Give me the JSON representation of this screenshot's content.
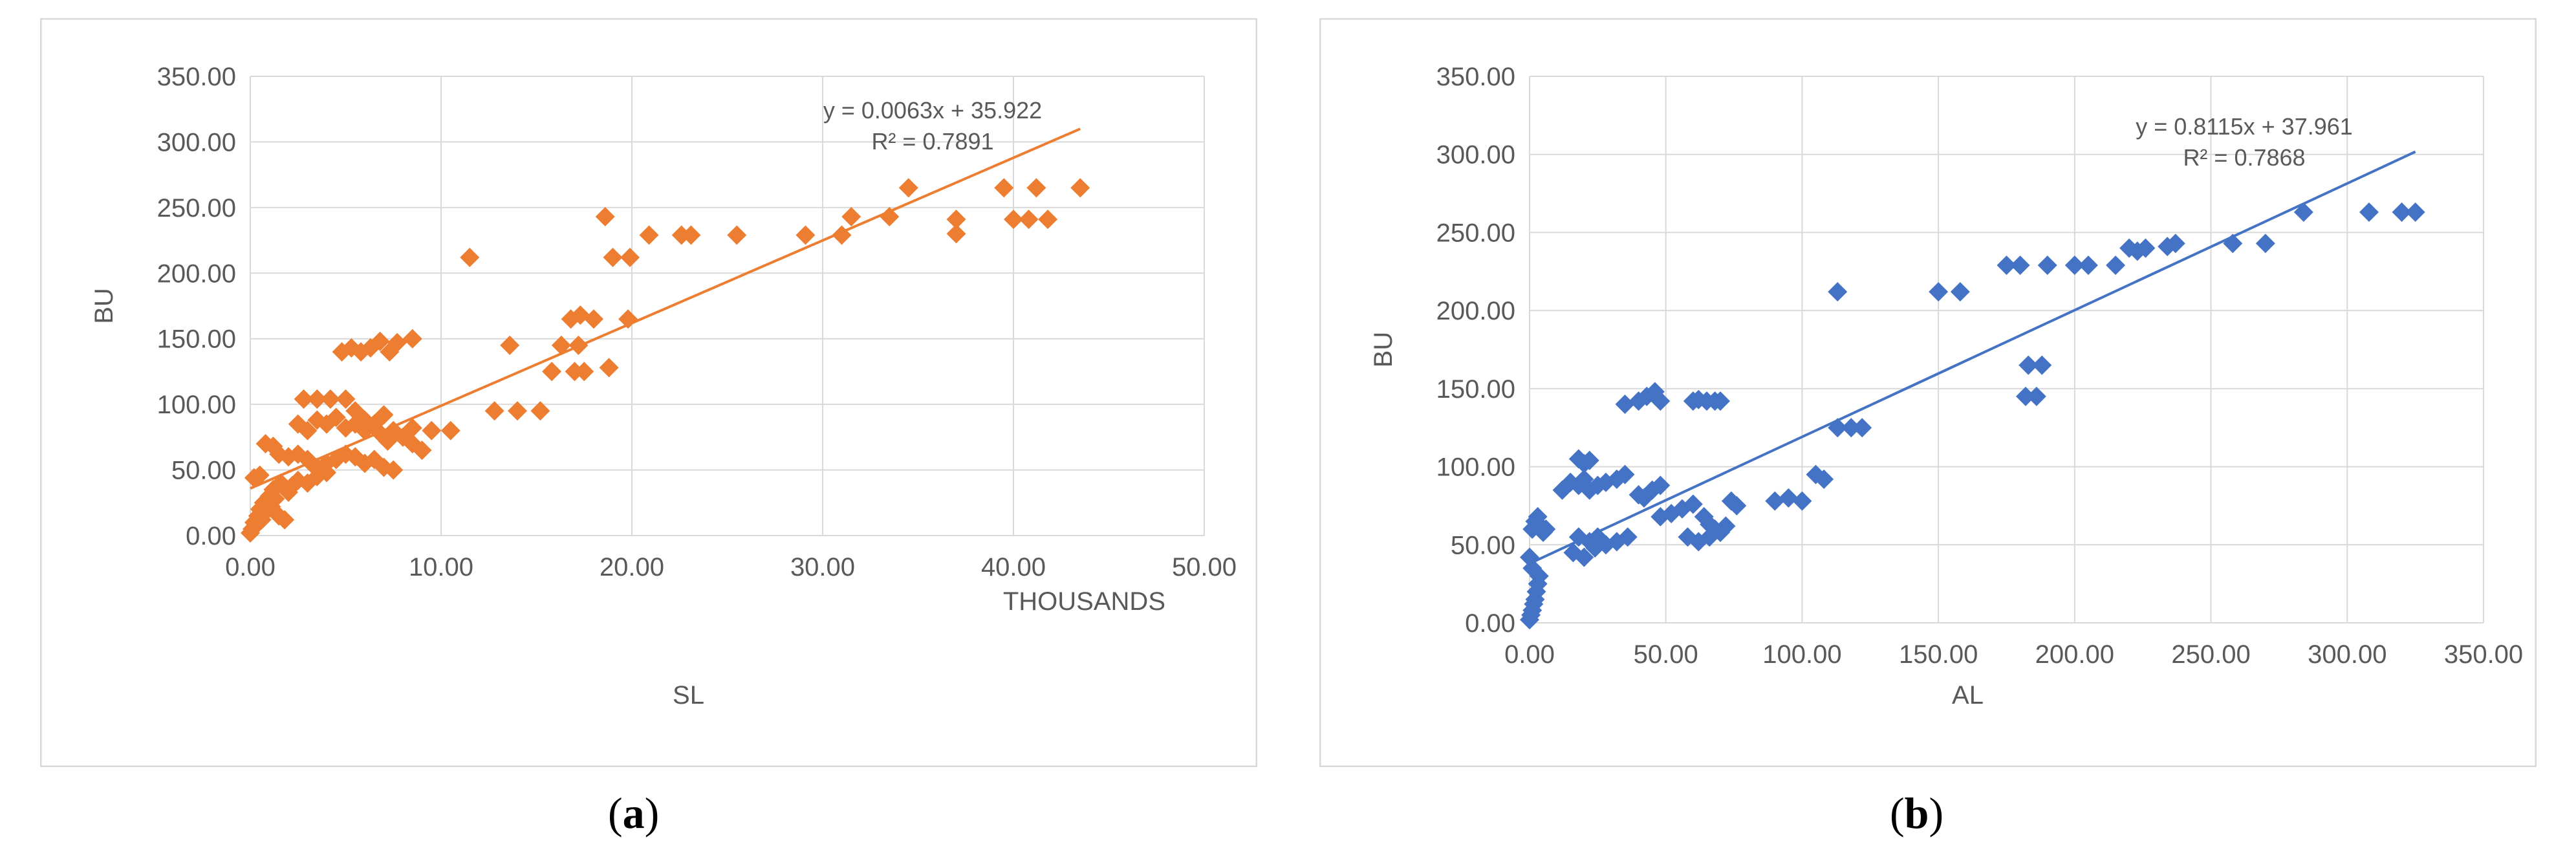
{
  "chart_data": [
    {
      "type": "scatter",
      "xlabel": "SL",
      "ylabel": "BU",
      "x_units_label": "THOUSANDS",
      "xlim": [
        0,
        50
      ],
      "ylim": [
        0,
        350
      ],
      "x_ticks": [
        "0.00",
        "10.00",
        "20.00",
        "30.00",
        "40.00",
        "50.00"
      ],
      "y_ticks": [
        "0.00",
        "50.00",
        "100.00",
        "150.00",
        "200.00",
        "250.00",
        "300.00",
        "350.00"
      ],
      "grid": true,
      "marker_color": "#ED7D31",
      "trendline": {
        "slope": 0.0063,
        "intercept": 35.922,
        "x_per_unit": 1000,
        "x_range": [
          0,
          43.5
        ]
      },
      "annotations": [
        "y = 0.0063x + 35.922",
        "R² = 0.7891"
      ],
      "points": [
        [
          0.0,
          2
        ],
        [
          0.1,
          5
        ],
        [
          0.2,
          10
        ],
        [
          0.3,
          8
        ],
        [
          0.4,
          15
        ],
        [
          0.5,
          20
        ],
        [
          0.6,
          12
        ],
        [
          0.7,
          25
        ],
        [
          0.8,
          18
        ],
        [
          1.0,
          30
        ],
        [
          1.1,
          22
        ],
        [
          1.2,
          35
        ],
        [
          1.3,
          28
        ],
        [
          1.5,
          15
        ],
        [
          1.6,
          40
        ],
        [
          1.8,
          12
        ],
        [
          2.0,
          33
        ],
        [
          2.2,
          38
        ],
        [
          2.5,
          42
        ],
        [
          3.0,
          40
        ],
        [
          3.5,
          45
        ],
        [
          4.0,
          48
        ],
        [
          0.2,
          44
        ],
        [
          0.5,
          46
        ],
        [
          0.8,
          70
        ],
        [
          1.2,
          68
        ],
        [
          1.5,
          62
        ],
        [
          2.0,
          60
        ],
        [
          2.5,
          62
        ],
        [
          3.0,
          58
        ],
        [
          3.2,
          55
        ],
        [
          3.5,
          52
        ],
        [
          4.0,
          55
        ],
        [
          4.5,
          58
        ],
        [
          5.0,
          62
        ],
        [
          5.5,
          60
        ],
        [
          6.0,
          55
        ],
        [
          6.5,
          58
        ],
        [
          7.0,
          52
        ],
        [
          7.5,
          50
        ],
        [
          2.5,
          85
        ],
        [
          3.0,
          80
        ],
        [
          3.5,
          88
        ],
        [
          4.0,
          85
        ],
        [
          4.5,
          90
        ],
        [
          5.0,
          82
        ],
        [
          5.5,
          95
        ],
        [
          6.0,
          88
        ],
        [
          6.5,
          85
        ],
        [
          7.0,
          92
        ],
        [
          7.5,
          80
        ],
        [
          8.0,
          75
        ],
        [
          8.5,
          70
        ],
        [
          9.0,
          65
        ],
        [
          8.5,
          82
        ],
        [
          9.5,
          80
        ],
        [
          10.5,
          80
        ],
        [
          2.8,
          104
        ],
        [
          3.5,
          104
        ],
        [
          4.2,
          104
        ],
        [
          5.0,
          104
        ],
        [
          5.5,
          85
        ],
        [
          6.0,
          80
        ],
        [
          6.8,
          78
        ],
        [
          7.2,
          72
        ],
        [
          4.8,
          140
        ],
        [
          5.3,
          143
        ],
        [
          5.8,
          140
        ],
        [
          6.3,
          143
        ],
        [
          6.8,
          148
        ],
        [
          7.3,
          140
        ],
        [
          7.7,
          147
        ],
        [
          8.5,
          150
        ],
        [
          11.5,
          212
        ],
        [
          12.8,
          95
        ],
        [
          13.6,
          145
        ],
        [
          14.0,
          95
        ],
        [
          15.2,
          95
        ],
        [
          15.8,
          125
        ],
        [
          16.3,
          145
        ],
        [
          16.8,
          165
        ],
        [
          17.0,
          125
        ],
        [
          17.2,
          145
        ],
        [
          17.3,
          168
        ],
        [
          17.5,
          125
        ],
        [
          18.0,
          165
        ],
        [
          18.6,
          243
        ],
        [
          18.8,
          128
        ],
        [
          19.0,
          212
        ],
        [
          19.8,
          165
        ],
        [
          19.9,
          212
        ],
        [
          20.9,
          229
        ],
        [
          22.6,
          229
        ],
        [
          23.1,
          229
        ],
        [
          25.5,
          229
        ],
        [
          29.1,
          229
        ],
        [
          31.0,
          229
        ],
        [
          31.5,
          243
        ],
        [
          33.5,
          243
        ],
        [
          34.5,
          265
        ],
        [
          37.0,
          230
        ],
        [
          37.0,
          241
        ],
        [
          39.5,
          265
        ],
        [
          40.0,
          241
        ],
        [
          40.8,
          241
        ],
        [
          41.2,
          265
        ],
        [
          41.8,
          241
        ],
        [
          43.5,
          265
        ]
      ]
    },
    {
      "type": "scatter",
      "xlabel": "AL",
      "ylabel": "BU",
      "xlim": [
        0,
        350
      ],
      "ylim": [
        0,
        350
      ],
      "x_ticks": [
        "0.00",
        "50.00",
        "100.00",
        "150.00",
        "200.00",
        "250.00",
        "300.00",
        "350.00"
      ],
      "y_ticks": [
        "0.00",
        "50.00",
        "100.00",
        "150.00",
        "200.00",
        "250.00",
        "300.00",
        "350.00"
      ],
      "grid": true,
      "marker_color": "#4472C4",
      "trendline": {
        "slope": 0.8115,
        "intercept": 37.961,
        "x_per_unit": 1,
        "x_range": [
          0,
          325
        ]
      },
      "annotations": [
        "y = 0.8115x + 37.961",
        "R² = 0.7868"
      ],
      "points": [
        [
          0,
          2
        ],
        [
          0.5,
          5
        ],
        [
          1,
          8
        ],
        [
          1.5,
          12
        ],
        [
          2,
          15
        ],
        [
          2.5,
          20
        ],
        [
          3,
          25
        ],
        [
          3.5,
          30
        ],
        [
          1,
          35
        ],
        [
          0,
          42
        ],
        [
          1,
          60
        ],
        [
          2,
          65
        ],
        [
          3,
          68
        ],
        [
          4,
          62
        ],
        [
          5,
          58
        ],
        [
          6,
          60
        ],
        [
          12,
          85
        ],
        [
          15,
          90
        ],
        [
          18,
          88
        ],
        [
          20,
          92
        ],
        [
          22,
          85
        ],
        [
          25,
          88
        ],
        [
          28,
          90
        ],
        [
          32,
          92
        ],
        [
          35,
          95
        ],
        [
          18,
          105
        ],
        [
          20,
          102
        ],
        [
          22,
          104
        ],
        [
          16,
          45
        ],
        [
          20,
          42
        ],
        [
          24,
          48
        ],
        [
          28,
          50
        ],
        [
          32,
          52
        ],
        [
          36,
          55
        ],
        [
          18,
          55
        ],
        [
          22,
          52
        ],
        [
          25,
          55
        ],
        [
          40,
          82
        ],
        [
          45,
          85
        ],
        [
          48,
          88
        ],
        [
          42,
          80
        ],
        [
          48,
          68
        ],
        [
          52,
          70
        ],
        [
          56,
          73
        ],
        [
          60,
          76
        ],
        [
          64,
          68
        ],
        [
          66,
          63
        ],
        [
          68,
          60
        ],
        [
          70,
          58
        ],
        [
          72,
          62
        ],
        [
          58,
          55
        ],
        [
          62,
          52
        ],
        [
          66,
          55
        ],
        [
          70,
          58
        ],
        [
          74,
          78
        ],
        [
          76,
          75
        ],
        [
          35,
          140
        ],
        [
          40,
          142
        ],
        [
          43,
          145
        ],
        [
          46,
          148
        ],
        [
          48,
          142
        ],
        [
          60,
          142
        ],
        [
          62,
          143
        ],
        [
          65,
          142
        ],
        [
          68,
          142
        ],
        [
          70,
          142
        ],
        [
          90,
          78
        ],
        [
          95,
          80
        ],
        [
          100,
          78
        ],
        [
          105,
          95
        ],
        [
          108,
          92
        ],
        [
          113,
          212
        ],
        [
          113,
          125
        ],
        [
          118,
          125
        ],
        [
          122,
          125
        ],
        [
          150,
          212
        ],
        [
          158,
          212
        ],
        [
          175,
          229
        ],
        [
          180,
          229
        ],
        [
          182,
          145
        ],
        [
          183,
          165
        ],
        [
          186,
          145
        ],
        [
          188,
          165
        ],
        [
          190,
          229
        ],
        [
          200,
          229
        ],
        [
          205,
          229
        ],
        [
          215,
          229
        ],
        [
          220,
          240
        ],
        [
          223,
          238
        ],
        [
          226,
          240
        ],
        [
          234,
          241
        ],
        [
          237,
          243
        ],
        [
          258,
          243
        ],
        [
          270,
          243
        ],
        [
          284,
          263
        ],
        [
          308,
          263
        ],
        [
          320,
          263
        ],
        [
          325,
          263
        ]
      ]
    }
  ],
  "captions": [
    "a",
    "b"
  ]
}
